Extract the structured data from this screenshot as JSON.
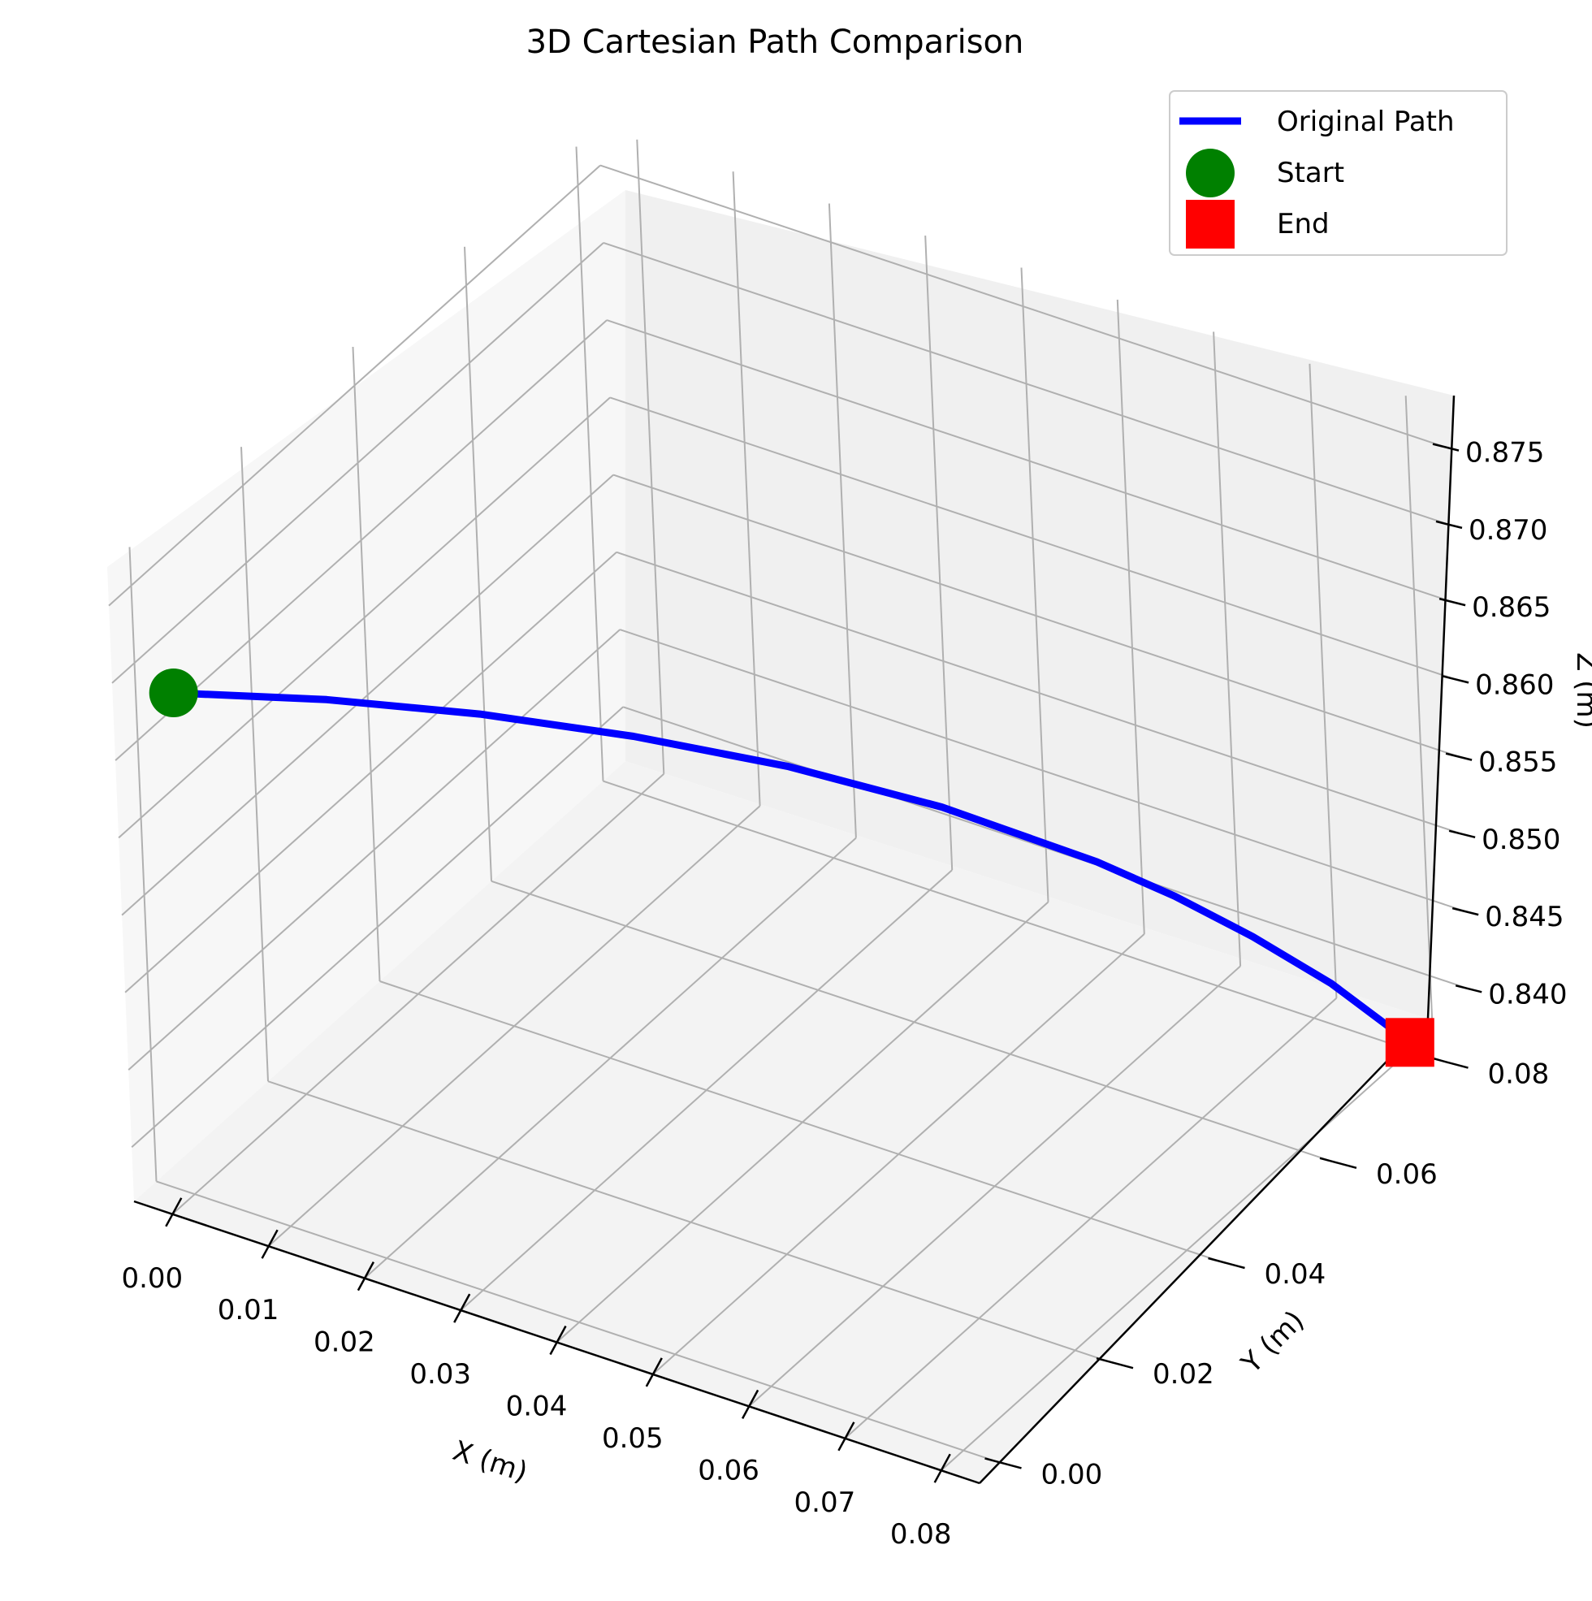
{
  "chart_data": {
    "type": "line",
    "projection": "3d",
    "title": "3D Cartesian Path Comparison",
    "xlabel": "X (m)",
    "ylabel": "Y (m)",
    "zlabel": "Z (m)",
    "xlim": [
      -0.004,
      0.084
    ],
    "ylim": [
      -0.004,
      0.084
    ],
    "zlim": [
      0.8365,
      0.8775
    ],
    "x_ticks": [
      "0.00",
      "0.01",
      "0.02",
      "0.03",
      "0.04",
      "0.05",
      "0.06",
      "0.07",
      "0.08"
    ],
    "y_ticks": [
      "0.00",
      "0.02",
      "0.04",
      "0.06",
      "0.08"
    ],
    "z_ticks": [
      "0.840",
      "0.845",
      "0.850",
      "0.855",
      "0.860",
      "0.865",
      "0.870",
      "0.875"
    ],
    "grid": true,
    "legend_position": "upper right",
    "series": [
      {
        "name": "Original Path",
        "color": "#0000ff",
        "x": [
          0.0,
          0.01,
          0.02,
          0.03,
          0.04,
          0.05,
          0.06,
          0.065,
          0.07,
          0.075,
          0.08
        ],
        "y": [
          0.0,
          0.01,
          0.02,
          0.03,
          0.04,
          0.05,
          0.06,
          0.065,
          0.07,
          0.075,
          0.08
        ],
        "z": [
          0.8689,
          0.8673,
          0.8652,
          0.8626,
          0.8595,
          0.8557,
          0.851,
          0.8482,
          0.845,
          0.8414,
          0.837
        ]
      }
    ],
    "markers": [
      {
        "name": "Start",
        "shape": "circle",
        "color": "#008000",
        "x": 0.0,
        "y": 0.0,
        "z": 0.8689
      },
      {
        "name": "End",
        "shape": "square",
        "color": "#ff0000",
        "x": 0.08,
        "y": 0.08,
        "z": 0.837
      }
    ]
  }
}
